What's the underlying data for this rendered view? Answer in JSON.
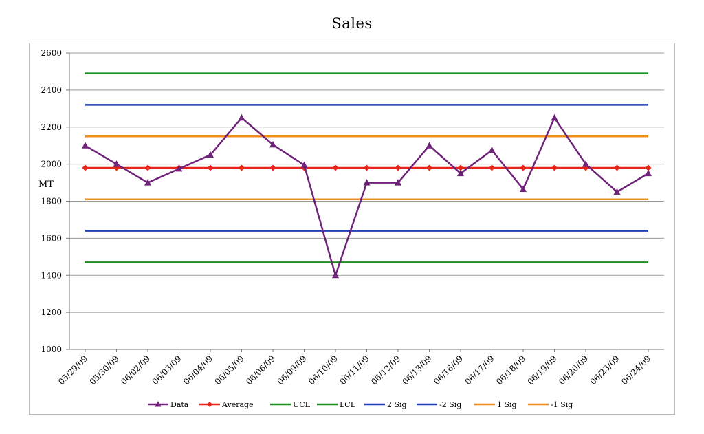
{
  "chart_data": {
    "type": "line",
    "title": "Sales",
    "ylabel": "MT",
    "xlabel": "",
    "ylim": [
      1000,
      2600
    ],
    "yticks": [
      1000,
      1200,
      1400,
      1600,
      1800,
      2000,
      2200,
      2400,
      2600
    ],
    "grid": true,
    "legend_position": "bottom",
    "categories": [
      "05/29/09",
      "05/30/09",
      "06/02/09",
      "06/03/09",
      "06/04/09",
      "06/05/09",
      "06/06/09",
      "06/09/09",
      "06/10/09",
      "06/11/09",
      "06/12/09",
      "06/13/09",
      "06/16/09",
      "06/17/09",
      "06/18/09",
      "06/19/09",
      "06/20/09",
      "06/23/09",
      "06/24/09"
    ],
    "series": [
      {
        "name": "Data",
        "color": "#70237a",
        "marker": "triangle",
        "values": [
          2100,
          2000,
          1900,
          1975,
          2050,
          2250,
          2105,
          1995,
          1400,
          1900,
          1900,
          2100,
          1950,
          2075,
          1865,
          2250,
          2000,
          1850,
          1950
        ]
      },
      {
        "name": "Average",
        "color": "#e8251b",
        "marker": "diamond",
        "values": [
          1980,
          1980,
          1980,
          1980,
          1980,
          1980,
          1980,
          1980,
          1980,
          1980,
          1980,
          1980,
          1980,
          1980,
          1980,
          1980,
          1980,
          1980,
          1980
        ]
      },
      {
        "name": "UCL",
        "color": "#1e8c1e",
        "marker": "none",
        "values": [
          2490,
          2490,
          2490,
          2490,
          2490,
          2490,
          2490,
          2490,
          2490,
          2490,
          2490,
          2490,
          2490,
          2490,
          2490,
          2490,
          2490,
          2490,
          2490
        ]
      },
      {
        "name": "LCL",
        "color": "#1e8c1e",
        "marker": "none",
        "values": [
          1470,
          1470,
          1470,
          1470,
          1470,
          1470,
          1470,
          1470,
          1470,
          1470,
          1470,
          1470,
          1470,
          1470,
          1470,
          1470,
          1470,
          1470,
          1470
        ]
      },
      {
        "name": "2 Sig",
        "color": "#1f3fb4",
        "marker": "none",
        "values": [
          2320,
          2320,
          2320,
          2320,
          2320,
          2320,
          2320,
          2320,
          2320,
          2320,
          2320,
          2320,
          2320,
          2320,
          2320,
          2320,
          2320,
          2320,
          2320
        ]
      },
      {
        "name": "-2 Sig",
        "color": "#1f3fb4",
        "marker": "none",
        "values": [
          1640,
          1640,
          1640,
          1640,
          1640,
          1640,
          1640,
          1640,
          1640,
          1640,
          1640,
          1640,
          1640,
          1640,
          1640,
          1640,
          1640,
          1640,
          1640
        ]
      },
      {
        "name": "1 Sig",
        "color": "#f08c1e",
        "marker": "none",
        "values": [
          2150,
          2150,
          2150,
          2150,
          2150,
          2150,
          2150,
          2150,
          2150,
          2150,
          2150,
          2150,
          2150,
          2150,
          2150,
          2150,
          2150,
          2150,
          2150
        ]
      },
      {
        "name": "-1 Sig",
        "color": "#f08c1e",
        "marker": "none",
        "values": [
          1810,
          1810,
          1810,
          1810,
          1810,
          1810,
          1810,
          1810,
          1810,
          1810,
          1810,
          1810,
          1810,
          1810,
          1810,
          1810,
          1810,
          1810,
          1810
        ]
      }
    ]
  }
}
